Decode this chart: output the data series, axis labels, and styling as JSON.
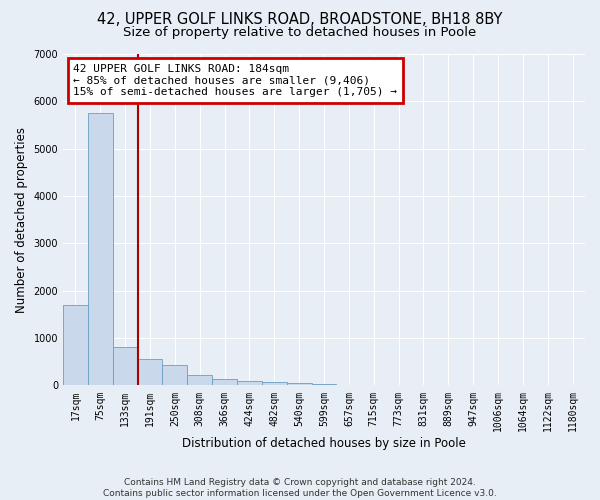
{
  "title_line1": "42, UPPER GOLF LINKS ROAD, BROADSTONE, BH18 8BY",
  "title_line2": "Size of property relative to detached houses in Poole",
  "xlabel": "Distribution of detached houses by size in Poole",
  "ylabel": "Number of detached properties",
  "categories": [
    "17sqm",
    "75sqm",
    "133sqm",
    "191sqm",
    "250sqm",
    "308sqm",
    "366sqm",
    "424sqm",
    "482sqm",
    "540sqm",
    "599sqm",
    "657sqm",
    "715sqm",
    "773sqm",
    "831sqm",
    "889sqm",
    "947sqm",
    "1006sqm",
    "1064sqm",
    "1122sqm",
    "1180sqm"
  ],
  "values": [
    1700,
    5750,
    820,
    550,
    440,
    230,
    145,
    100,
    65,
    50,
    35,
    20,
    10,
    0,
    0,
    0,
    0,
    0,
    0,
    0,
    0
  ],
  "bar_color": "#c9d9eb",
  "bar_edge_color": "#6b9ec4",
  "vline_color": "#aa0000",
  "vline_x_index": 3,
  "annotation_text": "42 UPPER GOLF LINKS ROAD: 184sqm\n← 85% of detached houses are smaller (9,406)\n15% of semi-detached houses are larger (1,705) →",
  "annotation_box_color": "#cc0000",
  "ylim": [
    0,
    7000
  ],
  "yticks": [
    0,
    1000,
    2000,
    3000,
    4000,
    5000,
    6000,
    7000
  ],
  "footnote_line1": "Contains HM Land Registry data © Crown copyright and database right 2024.",
  "footnote_line2": "Contains public sector information licensed under the Open Government Licence v3.0.",
  "bg_color": "#e8eef5",
  "plot_bg_color": "#e8eef5",
  "grid_color": "#ffffff",
  "title_fontsize": 10.5,
  "subtitle_fontsize": 9.5,
  "axis_label_fontsize": 8.5,
  "tick_fontsize": 7,
  "annotation_fontsize": 8,
  "footnote_fontsize": 6.5
}
